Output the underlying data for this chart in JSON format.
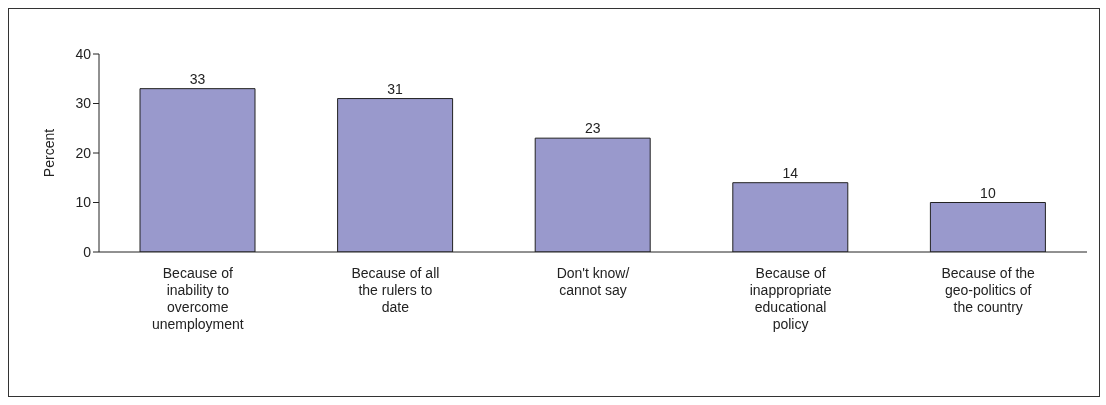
{
  "chart_data": {
    "type": "bar",
    "ylabel": "Percent",
    "categories": [
      "Because of inability to overcome unemployment",
      "Because of all the rulers to date",
      "Don't know/ cannot say",
      "Because of inappropriate educational policy",
      "Because of the geo-politics of the country"
    ],
    "values": [
      33,
      31,
      23,
      14,
      10
    ],
    "color": "#9999cc",
    "ylim": [
      0,
      40
    ],
    "yticks": [
      0,
      10,
      20,
      30,
      40
    ],
    "data_labels": true
  }
}
